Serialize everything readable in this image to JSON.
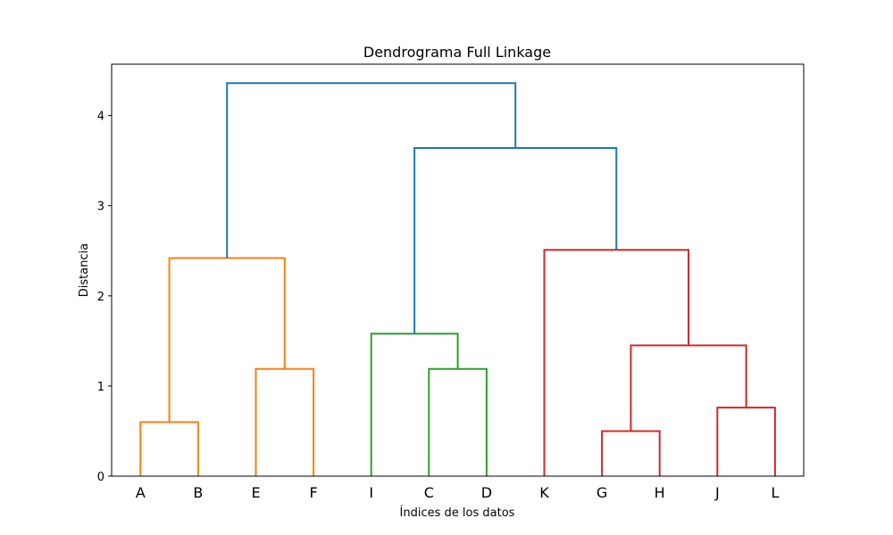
{
  "chart_data": {
    "type": "dendrogram",
    "title": "Dendrograma Full Linkage",
    "xlabel": "Índices de los datos",
    "ylabel": "Distancia",
    "ylim": [
      0,
      4.57
    ],
    "yticks": [
      "0",
      "1",
      "2",
      "3",
      "4"
    ],
    "leaves": [
      "A",
      "B",
      "E",
      "F",
      "I",
      "C",
      "D",
      "K",
      "G",
      "H",
      "J",
      "L"
    ],
    "colors": {
      "orange": "#ff7f0e",
      "green": "#2ca02c",
      "red": "#d62728",
      "blue": "#1f77b4"
    },
    "merges": [
      {
        "left": "A",
        "right": "B",
        "height": 0.6,
        "color": "orange"
      },
      {
        "left": "E",
        "right": "F",
        "height": 1.19,
        "color": "orange"
      },
      {
        "left": "A+B",
        "right": "E+F",
        "height": 2.42,
        "color": "orange"
      },
      {
        "left": "C",
        "right": "D",
        "height": 1.19,
        "color": "green"
      },
      {
        "left": "I",
        "right": "C+D",
        "height": 1.58,
        "color": "green"
      },
      {
        "left": "G",
        "right": "H",
        "height": 0.5,
        "color": "red"
      },
      {
        "left": "J",
        "right": "L",
        "height": 0.76,
        "color": "red"
      },
      {
        "left": "G+H",
        "right": "J+L",
        "height": 1.45,
        "color": "red"
      },
      {
        "left": "K",
        "right": "G+H+J+L",
        "height": 2.51,
        "color": "red"
      },
      {
        "left": "I+C+D",
        "right": "K+G+H+J+L",
        "height": 3.64,
        "color": "blue"
      },
      {
        "left": "A+B+E+F",
        "right": "I+C+D+K+G+H+J+L",
        "height": 4.36,
        "color": "blue"
      }
    ]
  }
}
